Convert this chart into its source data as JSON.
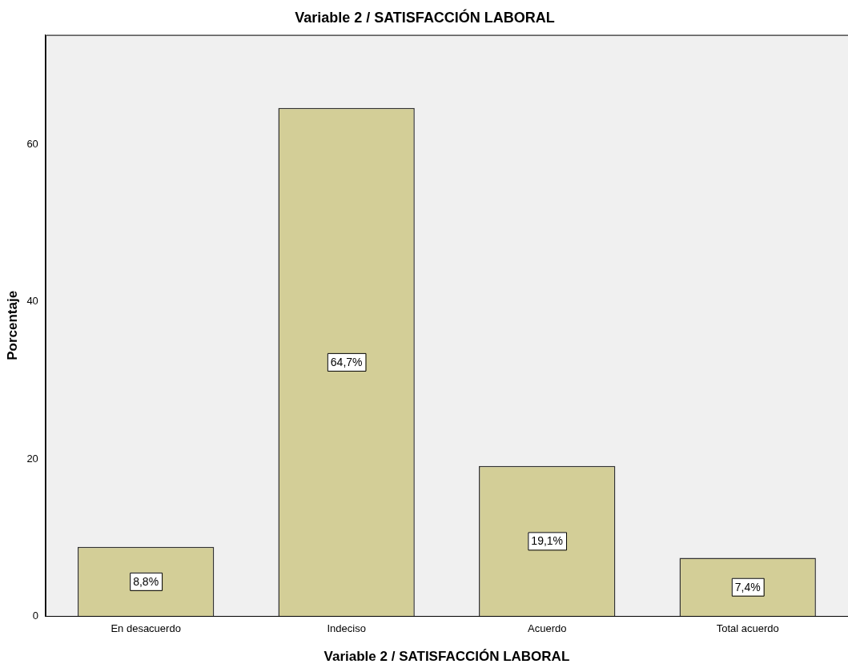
{
  "chart_data": {
    "type": "bar",
    "title": "Variable 2 / SATISFACCIÓN LABORAL",
    "xlabel": "Variable 2 / SATISFACCIÓN LABORAL",
    "ylabel": "Porcentaje",
    "categories": [
      "En desacuerdo",
      "Indeciso",
      "Acuerdo",
      "Total acuerdo"
    ],
    "values": [
      8.8,
      64.7,
      19.1,
      7.4
    ],
    "value_labels": [
      "8,8%",
      "64,7%",
      "19,1%",
      "7,4%"
    ],
    "color": "#d3ce97",
    "ylim": [
      0,
      74
    ],
    "yticks": [
      0,
      20,
      40,
      60
    ],
    "grid": false,
    "legend": false
  }
}
